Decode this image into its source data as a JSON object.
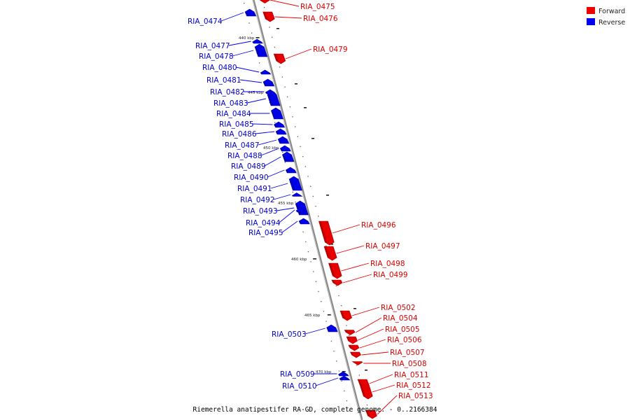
{
  "caption": "Riemerella anatipestifer RA-GD, complete genome. - 0..2166384",
  "legend": [
    {
      "label": "Forward",
      "color": "#ee0000"
    },
    {
      "label": "Reverse",
      "color": "#0000ee"
    }
  ],
  "ruler_labels": [
    "440 kbp",
    "445 kbp",
    "450 kbp",
    "455 kbp",
    "460 kbp",
    "465 kbp",
    "470 kbp"
  ],
  "genes": [
    {
      "name": "RIA_0474",
      "strand": "reverse"
    },
    {
      "name": "RIA_0475",
      "strand": "forward"
    },
    {
      "name": "RIA_0476",
      "strand": "forward"
    },
    {
      "name": "RIA_0477",
      "strand": "reverse"
    },
    {
      "name": "RIA_0478",
      "strand": "reverse"
    },
    {
      "name": "RIA_0479",
      "strand": "forward"
    },
    {
      "name": "RIA_0480",
      "strand": "reverse"
    },
    {
      "name": "RIA_0481",
      "strand": "reverse"
    },
    {
      "name": "RIA_0482",
      "strand": "reverse"
    },
    {
      "name": "RIA_0483",
      "strand": "reverse"
    },
    {
      "name": "RIA_0484",
      "strand": "reverse"
    },
    {
      "name": "RIA_0485",
      "strand": "reverse"
    },
    {
      "name": "RIA_0486",
      "strand": "reverse"
    },
    {
      "name": "RIA_0487",
      "strand": "reverse"
    },
    {
      "name": "RIA_0488",
      "strand": "reverse"
    },
    {
      "name": "RIA_0489",
      "strand": "reverse"
    },
    {
      "name": "RIA_0490",
      "strand": "reverse"
    },
    {
      "name": "RIA_0491",
      "strand": "reverse"
    },
    {
      "name": "RIA_0492",
      "strand": "reverse"
    },
    {
      "name": "RIA_0493",
      "strand": "reverse"
    },
    {
      "name": "RIA_0494",
      "strand": "reverse"
    },
    {
      "name": "RIA_0495",
      "strand": "reverse"
    },
    {
      "name": "RIA_0496",
      "strand": "forward"
    },
    {
      "name": "RIA_0497",
      "strand": "forward"
    },
    {
      "name": "RIA_0498",
      "strand": "forward"
    },
    {
      "name": "RIA_0499",
      "strand": "forward"
    },
    {
      "name": "RIA_0502",
      "strand": "forward"
    },
    {
      "name": "RIA_0503",
      "strand": "reverse"
    },
    {
      "name": "RIA_0504",
      "strand": "forward"
    },
    {
      "name": "RIA_0505",
      "strand": "forward"
    },
    {
      "name": "RIA_0506",
      "strand": "forward"
    },
    {
      "name": "RIA_0507",
      "strand": "forward"
    },
    {
      "name": "RIA_0508",
      "strand": "forward"
    },
    {
      "name": "RIA_0509",
      "strand": "reverse"
    },
    {
      "name": "RIA_0510",
      "strand": "reverse"
    },
    {
      "name": "RIA_0511",
      "strand": "forward"
    },
    {
      "name": "RIA_0512",
      "strand": "forward"
    },
    {
      "name": "RIA_0513",
      "strand": "forward"
    }
  ]
}
